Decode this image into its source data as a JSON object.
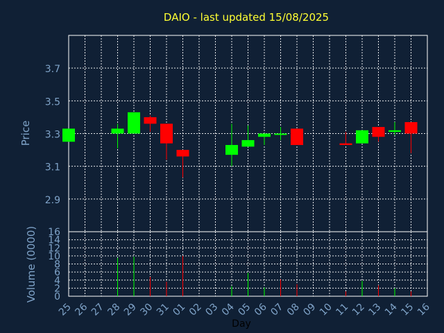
{
  "chart_data": [
    {
      "type": "candlestick",
      "title": "DAIO - last updated 15/08/2025",
      "ylabel": "Price",
      "yticks": [
        "2.9",
        "3.1",
        "3.3",
        "3.5",
        "3.7"
      ],
      "ylim": [
        2.7,
        3.9
      ],
      "grid": true,
      "colors": {
        "up": "#00ff00",
        "down": "#ff0000",
        "background": "#102035",
        "text": "#7fa3c8",
        "title": "#ffff33"
      },
      "x": [
        "25",
        "26",
        "27",
        "28",
        "29",
        "30",
        "31",
        "01",
        "02",
        "03",
        "04",
        "05",
        "06",
        "07",
        "08",
        "09",
        "10",
        "11",
        "12",
        "13",
        "14",
        "15",
        "16"
      ],
      "candles": [
        {
          "day": "25",
          "open": 3.25,
          "high": 3.33,
          "low": 3.25,
          "close": 3.33
        },
        {
          "day": "28",
          "open": 3.3,
          "high": 3.36,
          "low": 3.21,
          "close": 3.33
        },
        {
          "day": "29",
          "open": 3.3,
          "high": 3.43,
          "low": 3.3,
          "close": 3.43
        },
        {
          "day": "30",
          "open": 3.4,
          "high": 3.41,
          "low": 3.31,
          "close": 3.36
        },
        {
          "day": "31",
          "open": 3.36,
          "high": 3.36,
          "low": 3.14,
          "close": 3.24
        },
        {
          "day": "01",
          "open": 3.2,
          "high": 3.2,
          "low": 3.03,
          "close": 3.16
        },
        {
          "day": "04",
          "open": 3.17,
          "high": 3.36,
          "low": 3.1,
          "close": 3.23
        },
        {
          "day": "05",
          "open": 3.22,
          "high": 3.35,
          "low": 3.22,
          "close": 3.26
        },
        {
          "day": "06",
          "open": 3.28,
          "high": 3.3,
          "low": 3.23,
          "close": 3.3
        },
        {
          "day": "07",
          "open": 3.3,
          "high": 3.34,
          "low": 3.26,
          "close": 3.3
        },
        {
          "day": "08",
          "open": 3.33,
          "high": 3.33,
          "low": 3.23,
          "close": 3.23
        },
        {
          "day": "11",
          "open": 3.24,
          "high": 3.31,
          "low": 3.23,
          "close": 3.23
        },
        {
          "day": "12",
          "open": 3.24,
          "high": 3.32,
          "low": 3.24,
          "close": 3.32
        },
        {
          "day": "13",
          "open": 3.34,
          "high": 3.34,
          "low": 3.25,
          "close": 3.28
        },
        {
          "day": "14",
          "open": 3.31,
          "high": 3.37,
          "low": 3.29,
          "close": 3.32
        },
        {
          "day": "15",
          "open": 3.37,
          "high": 3.37,
          "low": 3.18,
          "close": 3.3
        }
      ]
    },
    {
      "type": "bar",
      "ylabel": "Volume (0000)",
      "xlabel": "Day",
      "yticks": [
        "0",
        "2",
        "4",
        "6",
        "8",
        "10",
        "12",
        "14",
        "16"
      ],
      "ylim": [
        0,
        16
      ],
      "categories": [
        "25",
        "26",
        "27",
        "28",
        "29",
        "30",
        "31",
        "01",
        "02",
        "03",
        "04",
        "05",
        "06",
        "07",
        "08",
        "09",
        "10",
        "11",
        "12",
        "13",
        "14",
        "15",
        "16"
      ],
      "volumes": [
        {
          "day": "28",
          "value": 9.5,
          "dir": "up"
        },
        {
          "day": "29",
          "value": 9.8,
          "dir": "up"
        },
        {
          "day": "30",
          "value": 4.8,
          "dir": "down"
        },
        {
          "day": "31",
          "value": 3.6,
          "dir": "down"
        },
        {
          "day": "01",
          "value": 10.0,
          "dir": "down"
        },
        {
          "day": "04",
          "value": 2.5,
          "dir": "up"
        },
        {
          "day": "05",
          "value": 5.8,
          "dir": "up"
        },
        {
          "day": "06",
          "value": 2.2,
          "dir": "up"
        },
        {
          "day": "07",
          "value": 4.2,
          "dir": "down"
        },
        {
          "day": "08",
          "value": 3.0,
          "dir": "down"
        },
        {
          "day": "11",
          "value": 1.2,
          "dir": "down"
        },
        {
          "day": "12",
          "value": 3.8,
          "dir": "up"
        },
        {
          "day": "13",
          "value": 2.7,
          "dir": "down"
        },
        {
          "day": "14",
          "value": 2.0,
          "dir": "up"
        },
        {
          "day": "15",
          "value": 1.2,
          "dir": "down"
        }
      ]
    }
  ]
}
